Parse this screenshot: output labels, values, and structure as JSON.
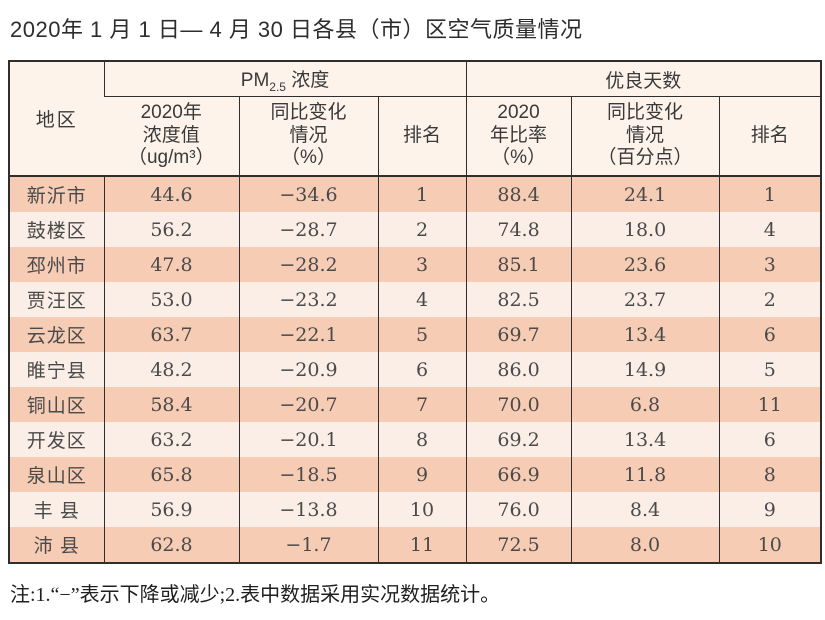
{
  "title": "2020年 1 月 1 日— 4 月 30 日各县（市）区空气质量情况",
  "note": "注:1.“−”表示下降或减少;2.表中数据采用实况数据统计。",
  "colors": {
    "row_dark": "#f6ccb5",
    "row_light": "#fbeee6",
    "header_bg": "#fdf3ea",
    "border": "#2e2e2e"
  },
  "table": {
    "region_header": "地区",
    "pm25_group": {
      "prefix": "PM",
      "subscript": "2.5",
      "suffix": " 浓度"
    },
    "good_days_group": "优良天数",
    "sub_headers": [
      {
        "id": "pm-value",
        "lines": [
          "2020年",
          "浓度值",
          "（ug/m³）"
        ]
      },
      {
        "id": "pm-change",
        "lines": [
          "同比变化",
          "情况",
          "（%）"
        ]
      },
      {
        "id": "pm-rank",
        "lines": [
          "排名"
        ]
      },
      {
        "id": "good-ratio",
        "lines": [
          "2020",
          "年比率",
          "（%）"
        ]
      },
      {
        "id": "good-change",
        "lines": [
          "同比变化",
          "情况",
          "（百分点）"
        ]
      },
      {
        "id": "good-rank",
        "lines": [
          "排名"
        ]
      }
    ],
    "rows": [
      {
        "region": "新沂市",
        "pm_value": "44.6",
        "pm_change": "−34.6",
        "pm_rank": "1",
        "good_ratio": "88.4",
        "good_change": "24.1",
        "good_rank": "1"
      },
      {
        "region": "鼓楼区",
        "pm_value": "56.2",
        "pm_change": "−28.7",
        "pm_rank": "2",
        "good_ratio": "74.8",
        "good_change": "18.0",
        "good_rank": "4"
      },
      {
        "region": "邳州市",
        "pm_value": "47.8",
        "pm_change": "−28.2",
        "pm_rank": "3",
        "good_ratio": "85.1",
        "good_change": "23.6",
        "good_rank": "3"
      },
      {
        "region": "贾汪区",
        "pm_value": "53.0",
        "pm_change": "−23.2",
        "pm_rank": "4",
        "good_ratio": "82.5",
        "good_change": "23.7",
        "good_rank": "2"
      },
      {
        "region": "云龙区",
        "pm_value": "63.7",
        "pm_change": "−22.1",
        "pm_rank": "5",
        "good_ratio": "69.7",
        "good_change": "13.4",
        "good_rank": "6"
      },
      {
        "region": "睢宁县",
        "pm_value": "48.2",
        "pm_change": "−20.9",
        "pm_rank": "6",
        "good_ratio": "86.0",
        "good_change": "14.9",
        "good_rank": "5"
      },
      {
        "region": "铜山区",
        "pm_value": "58.4",
        "pm_change": "−20.7",
        "pm_rank": "7",
        "good_ratio": "70.0",
        "good_change": "6.8",
        "good_rank": "11"
      },
      {
        "region": "开发区",
        "pm_value": "63.2",
        "pm_change": "−20.1",
        "pm_rank": "8",
        "good_ratio": "69.2",
        "good_change": "13.4",
        "good_rank": "6"
      },
      {
        "region": "泉山区",
        "pm_value": "65.8",
        "pm_change": "−18.5",
        "pm_rank": "9",
        "good_ratio": "66.9",
        "good_change": "11.8",
        "good_rank": "8"
      },
      {
        "region": "丰 县",
        "pm_value": "56.9",
        "pm_change": "−13.8",
        "pm_rank": "10",
        "good_ratio": "76.0",
        "good_change": "8.4",
        "good_rank": "9"
      },
      {
        "region": "沛 县",
        "pm_value": "62.8",
        "pm_change": "−1.7",
        "pm_rank": "11",
        "good_ratio": "72.5",
        "good_change": "8.0",
        "good_rank": "10"
      }
    ]
  }
}
